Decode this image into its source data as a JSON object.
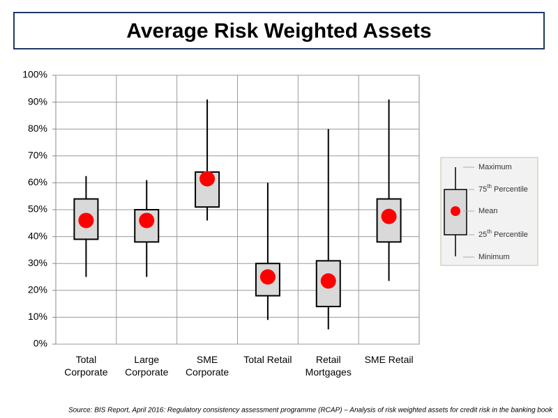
{
  "chart_data": {
    "type": "box",
    "title": "Average Risk Weighted Assets",
    "categories": [
      "Total Corporate",
      "Large Corporate",
      "SME Corporate",
      "Total Retail",
      "Retail Mortgages",
      "SME Retail"
    ],
    "boxes": [
      {
        "min": 25,
        "q1": 39,
        "mean": 46,
        "q3": 54,
        "max": 62.5
      },
      {
        "min": 25,
        "q1": 38,
        "mean": 46,
        "q3": 50,
        "max": 61
      },
      {
        "min": 46,
        "q1": 51,
        "mean": 61.5,
        "q3": 64,
        "max": 91
      },
      {
        "min": 9,
        "q1": 18,
        "mean": 25,
        "q3": 30,
        "max": 60
      },
      {
        "min": 5.5,
        "q1": 14,
        "mean": 23.5,
        "q3": 31,
        "max": 80
      },
      {
        "min": 23.5,
        "q1": 38,
        "mean": 47.5,
        "q3": 54,
        "max": 91
      }
    ],
    "box_color": "#d9d9d9",
    "mean_color": "#ff0000",
    "ylim": [
      0,
      100
    ],
    "yticks": [
      {
        "value": 0,
        "label": "0%"
      },
      {
        "value": 10,
        "label": "10%"
      },
      {
        "value": 20,
        "label": "20%"
      },
      {
        "value": 30,
        "label": "30%"
      },
      {
        "value": 40,
        "label": "40%"
      },
      {
        "value": 50,
        "label": "50%"
      },
      {
        "value": 60,
        "label": "60%"
      },
      {
        "value": 70,
        "label": "70%"
      },
      {
        "value": 80,
        "label": "80%"
      },
      {
        "value": 90,
        "label": "90%"
      },
      {
        "value": 100,
        "label": "100%"
      }
    ],
    "grid": true,
    "legend": {
      "maximum": "Maximum",
      "q3_number": "75",
      "q3_suffix": "th",
      "q3_text": "Percentile",
      "mean": "Mean",
      "q1_number": "25",
      "q1_suffix": "th",
      "q1_text": "Percentile",
      "minimum": "Minimum"
    },
    "source": "Source: BIS Report, April 2016: Regulatory consistency assessment programme (RCAP) – Analysis of risk weighted assets for credit risk in the banking book"
  }
}
